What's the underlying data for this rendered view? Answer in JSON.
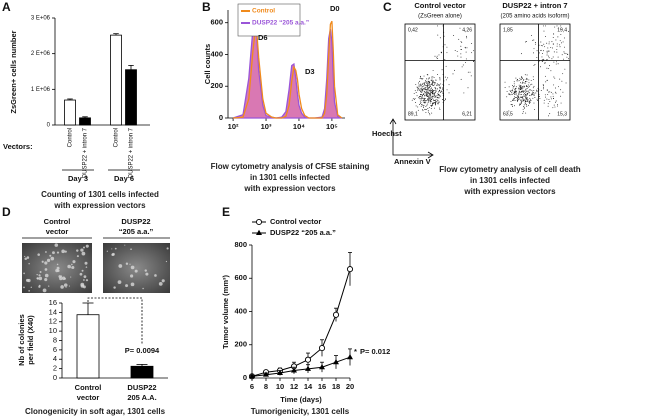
{
  "chart_data": [
    {
      "panel": "A",
      "type": "bar",
      "ylabel": "ZsGreen+ cells number",
      "group_label": "Vectors:",
      "categories": [
        "Control",
        "DUSP22 + intron 7",
        "Control",
        "DUSP22 + intron 7"
      ],
      "groups": [
        "Day 3",
        "Day 6"
      ],
      "values": [
        700000,
        200000,
        2520000,
        1550000
      ],
      "errors": [
        30000,
        30000,
        40000,
        120000
      ],
      "colors": [
        "#ffffff",
        "#000000",
        "#ffffff",
        "#000000"
      ],
      "ylim": [
        0,
        3000000
      ],
      "yticks": [
        0,
        {
          "value": 1000000,
          "label": "1 E+06"
        },
        {
          "value": 2000000,
          "label": "2 E+06"
        },
        {
          "value": 3000000,
          "label": "3 E+06"
        }
      ],
      "caption": [
        "Counting of 1301 cells infected",
        "with expression vectors"
      ]
    },
    {
      "panel": "B",
      "type": "area",
      "ylabel": "Cell counts",
      "xscale": "log",
      "x": [
        100,
        200,
        300,
        400,
        500,
        600,
        800,
        1000,
        1500,
        2000,
        3000,
        4000,
        5000,
        6000,
        7000,
        8000,
        9000,
        10000,
        12000,
        15000,
        20000,
        30000,
        50000,
        60000,
        70000,
        80000,
        90000,
        100000,
        110000,
        120000,
        150000,
        200000
      ],
      "series": [
        {
          "name": "Control",
          "color": "#f08a1c",
          "fill": null,
          "values": [
            0,
            5,
            120,
            420,
            600,
            380,
            120,
            30,
            5,
            0,
            0,
            10,
            80,
            230,
            320,
            300,
            240,
            150,
            60,
            15,
            0,
            0,
            0,
            30,
            150,
            400,
            590,
            610,
            420,
            200,
            20,
            0
          ]
        },
        {
          "name": "DUSP22 “205 a.a.”",
          "color": "#9a55d8",
          "fill": "#d978b3",
          "values": [
            0,
            20,
            250,
            560,
            590,
            300,
            80,
            15,
            5,
            0,
            5,
            40,
            180,
            330,
            340,
            250,
            150,
            80,
            30,
            5,
            0,
            0,
            5,
            60,
            250,
            500,
            560,
            480,
            260,
            100,
            10,
            0
          ]
        }
      ],
      "xlim": [
        70,
        250000
      ],
      "xticks": [
        {
          "value": 100,
          "label": "10²"
        },
        {
          "value": 1000,
          "label": "10³"
        },
        {
          "value": 10000,
          "label": "10⁴"
        },
        {
          "value": 100000,
          "label": "10⁵"
        }
      ],
      "ylim": [
        0,
        680
      ],
      "yticks": [
        0,
        200,
        400,
        600
      ],
      "peak_labels": [
        "D6",
        "D3",
        "D0"
      ],
      "caption": [
        "Flow cytometry analysis of CFSE staining",
        "in 1301 cells infected",
        "with expression vectors"
      ]
    },
    {
      "panel": "C",
      "type": "quadrant",
      "title": [
        "Control vector",
        "(ZsGreen alone)"
      ],
      "values": [
        0.42,
        4.26,
        89.1,
        6.21
      ],
      "value_labels": [
        "0,42",
        "4,26",
        "89,1",
        "6,21"
      ],
      "ylabel": "Hoechst",
      "xlabel": "Annexin V",
      "caption": [
        "Flow cytometry analysis of cell death",
        "in 1301 cells infected",
        "with expression vectors"
      ]
    },
    {
      "type": "quadrant",
      "title": [
        "DUSP22 + intron 7",
        "(205 amino acids isoform)"
      ],
      "values": [
        1.85,
        19.4,
        63.5,
        15.3
      ],
      "value_labels": [
        "1,85",
        "19,4",
        "63,5",
        "15,3"
      ]
    },
    {
      "panel": "D",
      "type": "bar",
      "image_labels": [
        [
          "Control",
          "vector"
        ],
        [
          "DUSP22",
          "“205 a.a.”"
        ]
      ],
      "ylabel": [
        "Nb of colonies",
        "per field (X40)"
      ],
      "categories": [
        [
          "Control",
          "vector"
        ],
        [
          "DUSP22",
          "205 A.A."
        ]
      ],
      "values": [
        13.5,
        2.5
      ],
      "errors": [
        2.5,
        0.4
      ],
      "colors": [
        "#ffffff",
        "#000000"
      ],
      "ylim": [
        0,
        16
      ],
      "yticks": [
        0,
        2,
        4,
        6,
        8,
        10,
        12,
        14,
        16
      ],
      "annotation": "P= 0.0094",
      "caption": "Clonogenicity in soft agar, 1301 cells"
    },
    {
      "panel": "E",
      "type": "line",
      "x": [
        6,
        8,
        10,
        12,
        14,
        16,
        18,
        20
      ],
      "series": [
        {
          "name": "Control vector",
          "marker": "circle",
          "color": "#000000",
          "values": [
            10,
            35,
            45,
            70,
            110,
            180,
            380,
            655
          ],
          "errors": [
            5,
            10,
            15,
            25,
            40,
            50,
            40,
            100
          ]
        },
        {
          "name": "DUSP22 “205 a.a.”",
          "marker": "triangle",
          "color": "#000000",
          "values": [
            10,
            20,
            30,
            45,
            55,
            65,
            95,
            125
          ],
          "errors": [
            5,
            10,
            15,
            20,
            25,
            30,
            40,
            50
          ]
        }
      ],
      "xlim": [
        6,
        20
      ],
      "xticks": [
        6,
        8,
        10,
        12,
        14,
        16,
        18,
        20
      ],
      "ylim": [
        0,
        800
      ],
      "yticks": [
        0,
        200,
        400,
        600,
        800
      ],
      "xlabel": "Time (days)",
      "ylabel": "Tumor volume (mm³)",
      "annotations": [
        "*",
        "P= 0.012"
      ],
      "caption": "Tumorigenicity, 1301 cells"
    }
  ]
}
